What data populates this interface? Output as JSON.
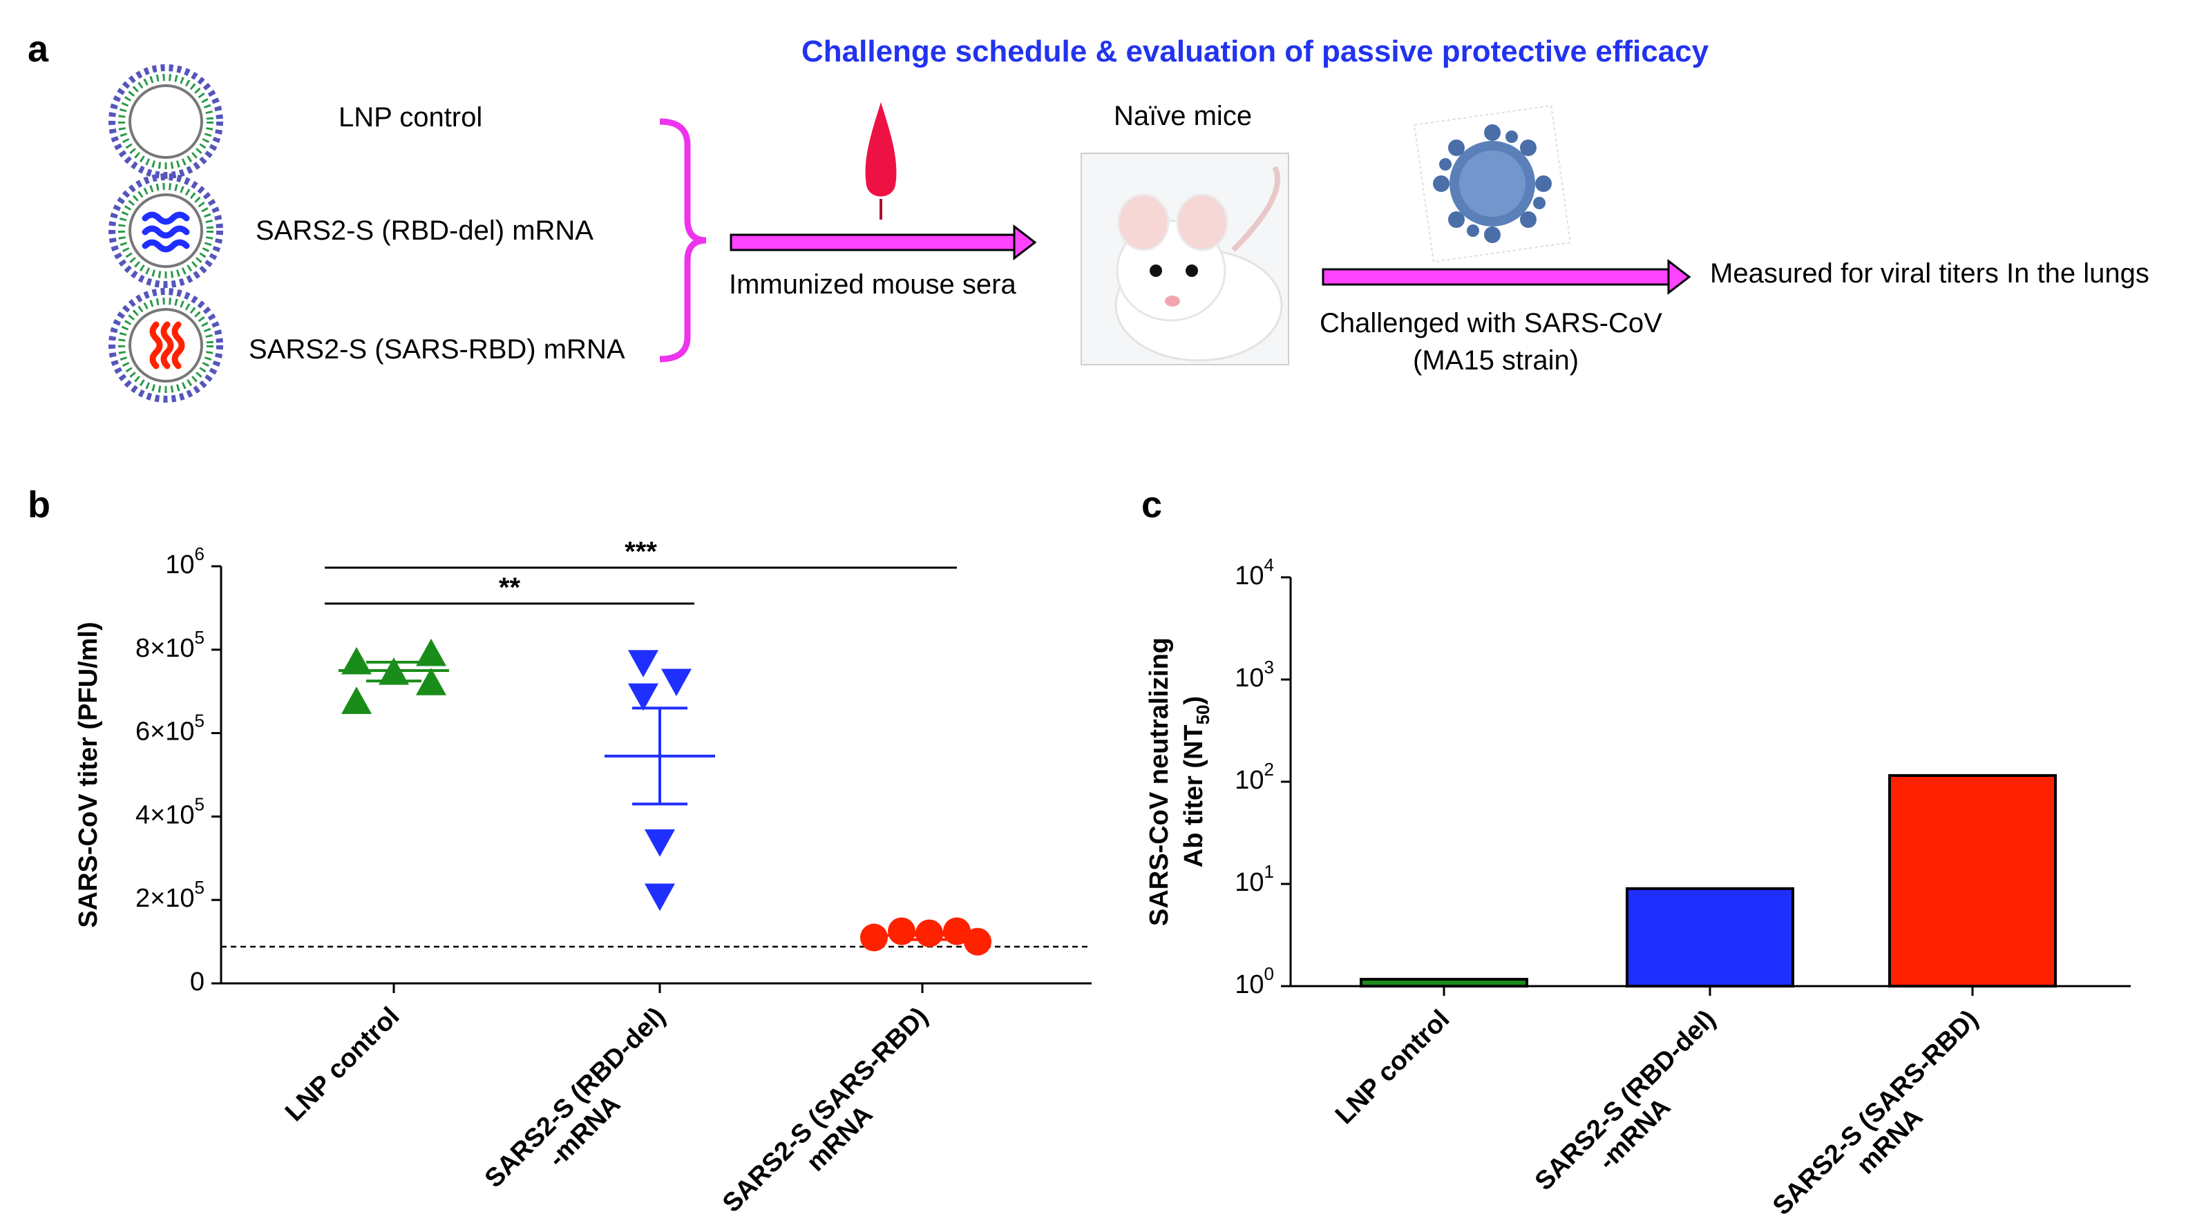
{
  "panel_labels": {
    "a": "a",
    "b": "b",
    "c": "c"
  },
  "schedule": {
    "title": "Challenge schedule & evaluation of passive protective efficacy",
    "groups": [
      "LNP control",
      "SARS2-S (RBD-del) mRNA",
      "SARS2-S (SARS-RBD) mRNA"
    ],
    "sera_label": "Immunized mouse sera",
    "mice_label": "Naïve mice",
    "challenge_line1": "Challenged with SARS-CoV",
    "challenge_line2": "(MA15 strain)",
    "measure_label": "Measured for viral titers In the lungs"
  },
  "colors": {
    "green": "#1a8c1a",
    "blue": "#1f2fff",
    "red": "#ff2200",
    "magenta": "#ee33ee",
    "arrow_fill": "#ff44ff"
  },
  "chart_data": [
    {
      "panel": "b",
      "type": "scatter",
      "ylabel": "SARS-CoV titer (PFU/ml)",
      "ylim": [
        0,
        1000000
      ],
      "yticks": [
        {
          "value": 0,
          "base": "0",
          "exp": ""
        },
        {
          "value": 200000,
          "base": "2×10",
          "exp": "5"
        },
        {
          "value": 400000,
          "base": "4×10",
          "exp": "5"
        },
        {
          "value": 600000,
          "base": "6×10",
          "exp": "5"
        },
        {
          "value": 800000,
          "base": "8×10",
          "exp": "5"
        },
        {
          "value": 1000000,
          "base": "10",
          "exp": "6"
        }
      ],
      "categories": [
        {
          "lines": [
            "LNP control"
          ]
        },
        {
          "lines": [
            "SARS2-S (RBD-del)",
            "-mRNA"
          ]
        },
        {
          "lines": [
            "SARS2-S (SARS-RBD)",
            "mRNA"
          ]
        }
      ],
      "series": [
        {
          "name": "LNP control",
          "marker": "triangle-up",
          "color": "#1a8c1a",
          "points": [
            [
              -0.27,
              770000
            ],
            [
              -0.27,
              675000
            ],
            [
              0.0,
              745000
            ],
            [
              0.27,
              790000
            ],
            [
              0.27,
              720000
            ]
          ],
          "mean": 750000,
          "sem_low": 725000,
          "sem_high": 770000
        },
        {
          "name": "SARS2-S (RBD-del) mRNA",
          "marker": "triangle-down",
          "color": "#1f2fff",
          "points": [
            [
              -0.12,
              770000
            ],
            [
              -0.12,
              690000
            ],
            [
              0.12,
              725000
            ],
            [
              0.0,
              340000
            ],
            [
              0.0,
              210000
            ]
          ],
          "mean": 545000,
          "sem_low": 430000,
          "sem_high": 660000
        },
        {
          "name": "SARS2-S (SARS-RBD) mRNA",
          "marker": "circle",
          "color": "#ff2200",
          "points": [
            [
              -0.35,
              110000
            ],
            [
              -0.15,
              125000
            ],
            [
              0.05,
              120000
            ],
            [
              0.25,
              125000
            ],
            [
              0.4,
              100000
            ]
          ],
          "mean": 115000,
          "sem_low": 105000,
          "sem_high": 122000
        }
      ],
      "detection_limit": 88000,
      "significance": [
        {
          "from": 0,
          "to": 1,
          "label": "**"
        },
        {
          "from": 0,
          "to": 2,
          "label": "***"
        }
      ]
    },
    {
      "panel": "c",
      "type": "bar",
      "ylabel_line1": "SARS-CoV neutralizing",
      "ylabel_line2": "Ab titer (NT",
      "ylabel_sub": "50",
      "ylabel_close": ")",
      "yscale": "log",
      "ylim": [
        1,
        10000
      ],
      "yticks": [
        {
          "value": 1,
          "base": "10",
          "exp": "0"
        },
        {
          "value": 10,
          "base": "10",
          "exp": "1"
        },
        {
          "value": 100,
          "base": "10",
          "exp": "2"
        },
        {
          "value": 1000,
          "base": "10",
          "exp": "3"
        },
        {
          "value": 10000,
          "base": "10",
          "exp": "4"
        }
      ],
      "categories": [
        {
          "lines": [
            "LNP control"
          ]
        },
        {
          "lines": [
            "SARS2-S (RBD-del)",
            "-mRNA"
          ]
        },
        {
          "lines": [
            "SARS2-S (SARS-RBD)",
            "mRNA"
          ]
        }
      ],
      "values": [
        1.0,
        9.0,
        115.0
      ],
      "colors": [
        "#1a8c1a",
        "#1f2fff",
        "#ff2200"
      ]
    }
  ]
}
